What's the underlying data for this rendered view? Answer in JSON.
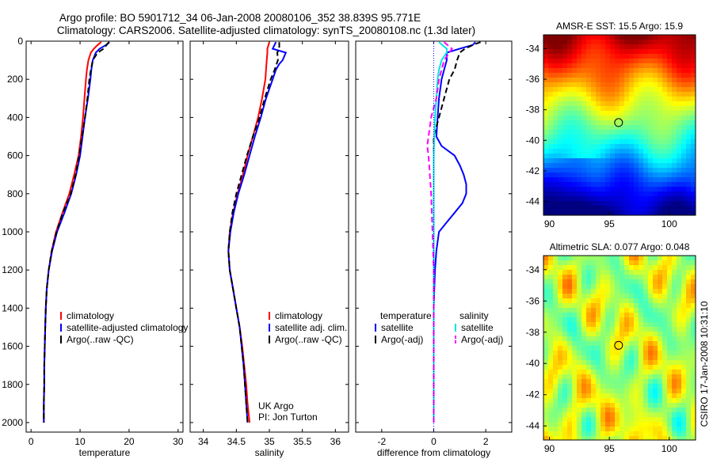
{
  "header": {
    "line1": "Argo profile: BO 5901712_34 06-Jan-2008 20080106_352 38.839S 95.771E",
    "line2": "Climatology: CARS2006. Satellite-adjusted climatology: synTS_20080108.nc (1.3d later)"
  },
  "side_label": "CSIRO 17-Jan-2008 10:31:10",
  "colors": {
    "climatology": "#ff0000",
    "satellite": "#0000ff",
    "argo": "#000000",
    "salinity_satellite": "#00e5e5",
    "salinity_argo": "#ff00ff",
    "zero_line": "#0000ff"
  },
  "depth_ticks": [
    "0",
    "200",
    "400",
    "600",
    "800",
    "1000",
    "1200",
    "1400",
    "1600",
    "1800",
    "2000"
  ],
  "chart_data": [
    {
      "type": "line",
      "id": "temperature",
      "xlabel": "temperature",
      "xlim": [
        -1,
        31
      ],
      "ylim": [
        2050,
        0
      ],
      "x_ticks": [
        0,
        10,
        20,
        30
      ],
      "x_tick_labels": [
        "0",
        "10",
        "20",
        "30"
      ],
      "y_ticks": [
        0,
        200,
        400,
        600,
        800,
        1000,
        1200,
        1400,
        1600,
        1800,
        2000
      ],
      "legend": [
        "climatology",
        "satellite-adjusted climatology",
        "Argo(..raw -QC)"
      ],
      "series": [
        {
          "name": "climatology",
          "style": "solid",
          "depth": [
            5,
            20,
            40,
            60,
            100,
            150,
            200,
            300,
            400,
            500,
            600,
            700,
            800,
            900,
            1000,
            1100,
            1200,
            1300,
            1400,
            1500,
            1600,
            1700,
            1800,
            1900,
            2000
          ],
          "values": [
            14.3,
            13.6,
            12.8,
            12.2,
            11.7,
            11.4,
            11.2,
            10.9,
            10.6,
            10.2,
            9.7,
            8.8,
            7.8,
            6.4,
            5.1,
            4.2,
            3.6,
            3.2,
            3.0,
            2.9,
            2.8,
            2.7,
            2.7,
            2.6,
            2.6
          ]
        },
        {
          "name": "satellite-adjusted climatology",
          "style": "solid",
          "depth": [
            5,
            20,
            40,
            60,
            100,
            150,
            200,
            300,
            400,
            500,
            600,
            700,
            800,
            900,
            1000,
            1100,
            1200,
            1300,
            1400,
            1500,
            1600,
            1700,
            1800,
            1900,
            2000
          ],
          "values": [
            16.0,
            15.3,
            14.0,
            13.2,
            12.6,
            12.3,
            12.1,
            11.6,
            11.0,
            10.5,
            10.0,
            9.2,
            8.2,
            6.8,
            5.3,
            4.3,
            3.6,
            3.2,
            3.0,
            2.9,
            2.8,
            2.7,
            2.7,
            2.6,
            2.6
          ]
        },
        {
          "name": "Argo(..raw -QC)",
          "style": "dashed",
          "depth": [
            5,
            20,
            40,
            60,
            100,
            150,
            200,
            300,
            400,
            500,
            600,
            700,
            800,
            900,
            1000,
            1100,
            1200,
            1300,
            1400,
            1500,
            1600,
            1700,
            1800,
            1900,
            2000
          ],
          "values": [
            15.9,
            15.4,
            14.8,
            13.6,
            12.6,
            12.2,
            11.9,
            11.5,
            11.0,
            10.4,
            9.8,
            9.1,
            8.1,
            6.5,
            5.2,
            4.2,
            3.6,
            3.2,
            3.0,
            2.9,
            2.8,
            2.7,
            2.7,
            2.6,
            2.6
          ]
        }
      ]
    },
    {
      "type": "line",
      "id": "salinity",
      "xlabel": "salinity",
      "xlim": [
        33.8,
        36.2
      ],
      "ylim": [
        2050,
        0
      ],
      "x_ticks": [
        34,
        34.5,
        35,
        35.5,
        36
      ],
      "x_tick_labels": [
        "34",
        "34.5",
        "35",
        "35.5",
        "36"
      ],
      "y_ticks": [
        0,
        200,
        400,
        600,
        800,
        1000,
        1200,
        1400,
        1600,
        1800,
        2000
      ],
      "legend": [
        "climatology",
        "satellite adj. clim.",
        "Argo(..raw -QC)"
      ],
      "annotation": [
        "UK Argo",
        "PI: Jon Turton"
      ],
      "series": [
        {
          "name": "climatology",
          "style": "solid",
          "depth": [
            5,
            40,
            60,
            100,
            150,
            200,
            300,
            400,
            500,
            600,
            700,
            800,
            900,
            1000,
            1100,
            1200,
            1300,
            1400,
            1500,
            1600,
            1700,
            1800,
            1900,
            2000
          ],
          "values": [
            35.0,
            34.97,
            34.97,
            34.96,
            34.95,
            34.94,
            34.89,
            34.83,
            34.75,
            34.67,
            34.6,
            34.52,
            34.45,
            34.4,
            34.38,
            34.4,
            34.45,
            34.5,
            34.55,
            34.59,
            34.62,
            34.65,
            34.67,
            34.7
          ]
        },
        {
          "name": "satellite adj. clim.",
          "style": "solid",
          "depth": [
            5,
            40,
            60,
            100,
            120,
            150,
            200,
            300,
            400,
            500,
            600,
            700,
            800,
            900,
            1000,
            1100,
            1200,
            1300,
            1400,
            1500,
            1600,
            1700,
            1800,
            1900,
            2000
          ],
          "values": [
            35.1,
            35.05,
            35.25,
            35.2,
            35.15,
            35.1,
            35.05,
            34.95,
            34.87,
            34.78,
            34.7,
            34.62,
            34.53,
            34.46,
            34.41,
            34.38,
            34.4,
            34.45,
            34.5,
            34.55,
            34.58,
            34.61,
            34.63,
            34.65,
            34.67
          ]
        },
        {
          "name": "Argo(..raw -QC)",
          "style": "dashed",
          "depth": [
            5,
            40,
            60,
            100,
            150,
            200,
            300,
            400,
            500,
            600,
            700,
            800,
            900,
            1000,
            1100,
            1200,
            1300,
            1400,
            1500,
            1600,
            1700,
            1800,
            1900,
            2000
          ],
          "values": [
            35.15,
            35.15,
            35.12,
            35.13,
            35.08,
            35.02,
            34.93,
            34.85,
            34.75,
            34.66,
            34.58,
            34.5,
            34.44,
            34.4,
            34.38,
            34.4,
            34.45,
            34.5,
            34.55,
            34.58,
            34.61,
            34.63,
            34.65,
            34.67
          ]
        }
      ]
    },
    {
      "type": "line",
      "id": "difference",
      "xlabel": "difference from climatology",
      "xlim": [
        -3,
        3
      ],
      "ylim": [
        2050,
        0
      ],
      "x_ticks": [
        -2,
        0,
        2
      ],
      "x_tick_labels": [
        "-2",
        "0",
        "2"
      ],
      "y_ticks": [
        0,
        200,
        400,
        600,
        800,
        1000,
        1200,
        1400,
        1600,
        1800,
        2000
      ],
      "legend_left_title": "temperature",
      "legend_right_title": "salinity",
      "legend_left": [
        "satellite",
        "Argo(-adj)"
      ],
      "legend_right": [
        "satellite",
        "Argo(-adj)"
      ],
      "series": [
        {
          "name": "temperature satellite",
          "style": "solid",
          "depth": [
            5,
            20,
            40,
            60,
            100,
            150,
            200,
            300,
            400,
            500,
            550,
            600,
            650,
            700,
            750,
            800,
            850,
            900,
            950,
            1000,
            1100,
            1200,
            1300,
            1400,
            1600,
            1800,
            2000
          ],
          "values": [
            1.6,
            1.5,
            1.0,
            0.5,
            0.5,
            0.4,
            0.3,
            0.2,
            0.15,
            0.1,
            0.3,
            0.8,
            1.0,
            1.15,
            1.25,
            1.25,
            1.1,
            0.8,
            0.5,
            0.2,
            0.1,
            0.05,
            0.02,
            0,
            0,
            0,
            0
          ]
        },
        {
          "name": "temperature Argo(-adj)",
          "style": "dashed",
          "depth": [
            5,
            20,
            40,
            60,
            100,
            150,
            200,
            300,
            400,
            500,
            600,
            800,
            1000,
            1200,
            1400,
            1600,
            1800,
            2000
          ],
          "values": [
            1.8,
            1.5,
            1.2,
            1.0,
            0.9,
            0.8,
            0.6,
            0.4,
            0.2,
            0,
            0,
            0,
            0,
            0,
            0,
            0,
            0,
            0
          ]
        },
        {
          "name": "salinity satellite",
          "style": "solid",
          "depth": [
            5,
            40,
            60,
            100,
            150,
            200,
            300,
            400,
            500,
            600,
            800,
            1000,
            1200,
            1400,
            1600,
            1800,
            2000
          ],
          "values": [
            0.2,
            0.5,
            0.5,
            0.3,
            0.2,
            0.15,
            0.1,
            0.05,
            0.02,
            0,
            0,
            0,
            0,
            0,
            0,
            0,
            0
          ]
        },
        {
          "name": "salinity Argo(-adj)",
          "style": "dashed",
          "depth": [
            5,
            40,
            60,
            100,
            150,
            200,
            300,
            400,
            500,
            550,
            600,
            700,
            800,
            1000,
            1200,
            1400,
            1600,
            1800,
            2000
          ],
          "values": [
            0.4,
            0.7,
            0.6,
            0.4,
            0.3,
            0.2,
            0.1,
            -0.1,
            -0.2,
            -0.25,
            -0.2,
            -0.15,
            -0.1,
            -0.05,
            0,
            0,
            0,
            0,
            0
          ]
        }
      ]
    },
    {
      "type": "heatmap",
      "id": "sst_map",
      "title": "AMSR-E SST: 15.5 Argo: 15.9",
      "xlim": [
        89.5,
        102.2
      ],
      "ylim": [
        -44.9,
        -33.1
      ],
      "x_ticks": [
        90,
        95,
        100
      ],
      "x_tick_labels": [
        "90",
        "95",
        "100"
      ],
      "y_ticks": [
        -34,
        -36,
        -38,
        -40,
        -42,
        -44
      ],
      "y_tick_labels": [
        "-34",
        "-36",
        "-38",
        "-40",
        "-42",
        "-44"
      ],
      "marker": {
        "lon": 95.771,
        "lat": -38.839
      }
    },
    {
      "type": "heatmap",
      "id": "sla_map",
      "title": "Altimetric SLA: 0.077 Argo: 0.048",
      "xlim": [
        89.5,
        102.2
      ],
      "ylim": [
        -44.9,
        -33.1
      ],
      "x_ticks": [
        90,
        95,
        100
      ],
      "x_tick_labels": [
        "90",
        "95",
        "100"
      ],
      "y_ticks": [
        -34,
        -36,
        -38,
        -40,
        -42,
        -44
      ],
      "y_tick_labels": [
        "-34",
        "-36",
        "-38",
        "-40",
        "-42",
        "-44"
      ],
      "marker": {
        "lon": 95.771,
        "lat": -38.839
      }
    }
  ]
}
